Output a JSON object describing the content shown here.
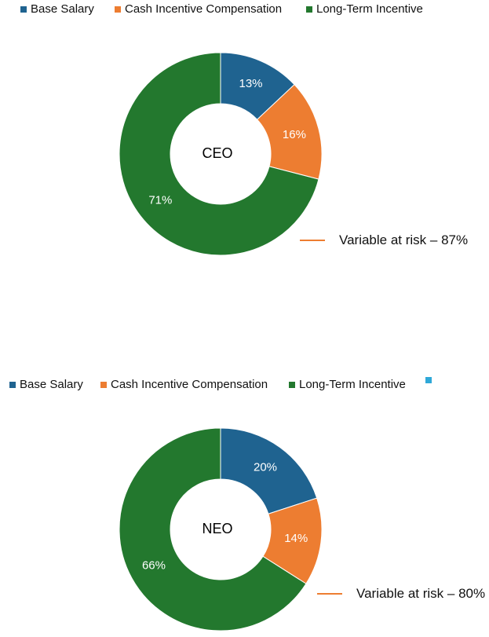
{
  "colors": {
    "base_salary": "#1F6390",
    "cash_incentive": "#ED7D31",
    "long_term_incentive": "#23782E",
    "extra_legend": "#2FA8D8",
    "risk_line": "#ED7D31"
  },
  "chart_data": [
    {
      "type": "pie",
      "donut": true,
      "center_label": "CEO",
      "legend_position": "top",
      "categories": [
        "Base Salary",
        "Cash Incentive Compensation",
        "Long-Term Incentive"
      ],
      "values": [
        13,
        16,
        71
      ],
      "data_labels": [
        "13%",
        "16%",
        "71%"
      ],
      "legend": [
        "Base Salary",
        "Cash Incentive Compensation",
        "Long-Term Incentive"
      ],
      "annotation": "Variable at risk – 87%"
    },
    {
      "type": "pie",
      "donut": true,
      "center_label": "NEO",
      "legend_position": "top",
      "categories": [
        "Base Salary",
        "Cash Incentive Compensation",
        "Long-Term Incentive"
      ],
      "values": [
        20,
        14,
        66
      ],
      "data_labels": [
        "20%",
        "14%",
        "66%"
      ],
      "legend": [
        "Base Salary",
        "Cash Incentive Compensation",
        "Long-Term Incentive",
        ""
      ],
      "annotation": "Variable at risk – 80%"
    }
  ]
}
